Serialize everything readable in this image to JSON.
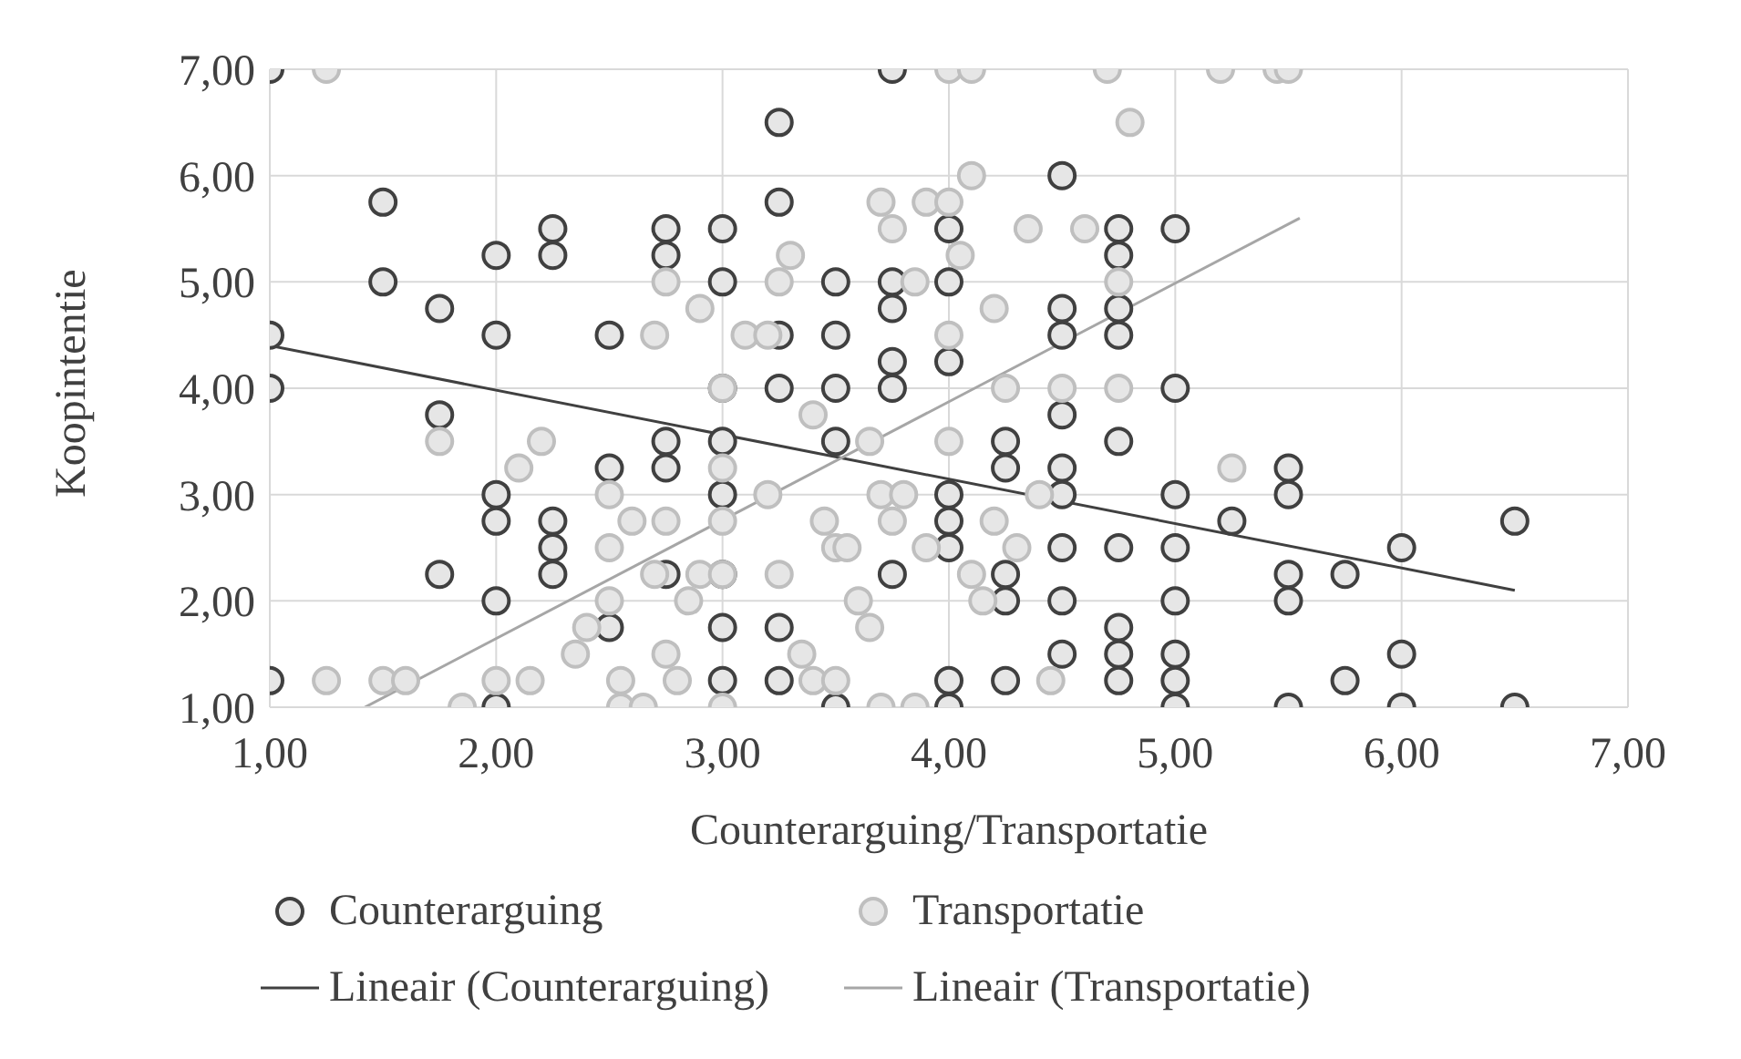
{
  "chart_data": {
    "type": "scatter",
    "xlabel": "Counterarguing/Transportatie",
    "ylabel": "Koopintentie",
    "xlim": [
      1,
      7
    ],
    "ylim": [
      1,
      7
    ],
    "xticks": [
      {
        "value": 1,
        "label": "1,00"
      },
      {
        "value": 2,
        "label": "2,00"
      },
      {
        "value": 3,
        "label": "3,00"
      },
      {
        "value": 4,
        "label": "4,00"
      },
      {
        "value": 5,
        "label": "5,00"
      },
      {
        "value": 6,
        "label": "6,00"
      },
      {
        "value": 7,
        "label": "7,00"
      }
    ],
    "yticks": [
      {
        "value": 1,
        "label": "1,00"
      },
      {
        "value": 2,
        "label": "2,00"
      },
      {
        "value": 3,
        "label": "3,00"
      },
      {
        "value": 4,
        "label": "4,00"
      },
      {
        "value": 5,
        "label": "5,00"
      },
      {
        "value": 6,
        "label": "6,00"
      },
      {
        "value": 7,
        "label": "7,00"
      }
    ],
    "grid": true,
    "legend": "bottom",
    "marker": "circle",
    "series": [
      {
        "name": "Counterarguing",
        "color": "#404040",
        "x": [
          1,
          1,
          1,
          1,
          1.5,
          1.5,
          1.75,
          1.75,
          1.75,
          2,
          2,
          2,
          2,
          2,
          2,
          2.25,
          2.25,
          2.25,
          2.25,
          2.25,
          2.5,
          2.5,
          2.5,
          2.75,
          2.75,
          2.75,
          2.75,
          2.75,
          3,
          3,
          3,
          3,
          3,
          3,
          3,
          3,
          3.25,
          3.25,
          3.25,
          3.25,
          3.25,
          3.25,
          3.5,
          3.5,
          3.5,
          3.5,
          3.5,
          3.75,
          3.75,
          3.75,
          3.75,
          3.75,
          3.75,
          4,
          4,
          4,
          4,
          4,
          4,
          4,
          4,
          4.25,
          4.25,
          4.25,
          4.25,
          4.25,
          4.5,
          4.5,
          4.5,
          4.5,
          4.5,
          4.5,
          4.5,
          4.5,
          4.5,
          4.75,
          4.75,
          4.75,
          4.75,
          4.75,
          4.75,
          4.75,
          4.75,
          4.75,
          5,
          5,
          5,
          5,
          5,
          5,
          5,
          5,
          5.25,
          5.5,
          5.5,
          5.5,
          5.5,
          5.5,
          5.75,
          5.75,
          6,
          6,
          6,
          6.5,
          6.5
        ],
        "values": [
          7,
          4.5,
          4,
          1.25,
          5.75,
          5,
          4.75,
          3.75,
          2.25,
          5.25,
          4.5,
          3,
          2.75,
          2,
          1,
          5.5,
          5.25,
          2.75,
          2.5,
          2.25,
          4.5,
          3.25,
          1.75,
          5.5,
          5.25,
          3.5,
          3.25,
          2.25,
          5.5,
          5,
          4,
          3.5,
          3,
          2.25,
          1.75,
          1.25,
          6.5,
          5.75,
          4.5,
          4,
          1.75,
          1.25,
          5,
          4.5,
          4,
          3.5,
          1,
          7,
          5,
          4.75,
          4.25,
          4,
          2.25,
          5.5,
          5,
          4.25,
          3,
          2.75,
          2.5,
          1.25,
          1,
          3.5,
          3.25,
          2.25,
          2,
          1.25,
          6,
          4.75,
          4.5,
          3.75,
          3.25,
          3,
          2.5,
          2,
          1.5,
          5.5,
          5.25,
          4.75,
          4.5,
          3.5,
          2.5,
          1.75,
          1.5,
          1.25,
          5.5,
          4,
          3,
          2.5,
          2,
          1.5,
          1.25,
          1,
          2.75,
          3.25,
          3,
          2.25,
          2,
          1,
          2.25,
          1.25,
          2.5,
          1.5,
          1,
          2.75,
          1
        ]
      },
      {
        "name": "Transportatie",
        "color": "#bfbfbf",
        "x": [
          1.25,
          1.25,
          1.5,
          1.6,
          1.75,
          1.85,
          2,
          2.1,
          2.15,
          2.2,
          2.35,
          2.4,
          2.5,
          2.5,
          2.5,
          2.55,
          2.55,
          2.6,
          2.65,
          2.7,
          2.7,
          2.75,
          2.75,
          2.75,
          2.8,
          2.85,
          2.9,
          2.9,
          3,
          3,
          3,
          3,
          3,
          3.1,
          3.2,
          3.2,
          3.25,
          3.25,
          3.3,
          3.35,
          3.4,
          3.4,
          3.45,
          3.5,
          3.5,
          3.55,
          3.6,
          3.65,
          3.65,
          3.7,
          3.7,
          3.7,
          3.75,
          3.75,
          3.8,
          3.85,
          3.85,
          3.9,
          3.9,
          4,
          4,
          4,
          4,
          4.05,
          4.1,
          4.1,
          4.1,
          4.15,
          4.2,
          4.2,
          4.25,
          4.3,
          4.35,
          4.4,
          4.45,
          4.5,
          4.6,
          4.7,
          4.75,
          4.75,
          4.8,
          5.2,
          5.25,
          5.45,
          5.5
        ],
        "values": [
          7,
          1.25,
          1.25,
          1.25,
          3.5,
          1,
          1.25,
          3.25,
          1.25,
          3.5,
          1.5,
          1.75,
          3,
          2.5,
          2,
          1.25,
          1,
          2.75,
          1,
          2.25,
          4.5,
          5,
          2.75,
          1.5,
          1.25,
          2,
          4.75,
          2.25,
          4,
          3.25,
          2.75,
          2.25,
          1,
          4.5,
          4.5,
          3,
          5,
          2.25,
          5.25,
          1.5,
          3.75,
          1.25,
          2.75,
          2.5,
          1.25,
          2.5,
          2,
          3.5,
          1.75,
          5.75,
          3,
          1,
          5.5,
          2.75,
          3,
          5,
          1,
          5.75,
          2.5,
          7,
          5.75,
          4.5,
          3.5,
          5.25,
          7,
          6,
          2.25,
          2,
          4.75,
          2.75,
          4,
          2.5,
          5.5,
          3,
          1.25,
          4,
          5.5,
          7,
          4,
          5,
          6.5,
          7,
          3.25,
          7,
          7
        ]
      },
      {
        "name": "Lineair (Counterarguing)",
        "type": "line",
        "marker": "none",
        "color": "#404040",
        "x": [
          1,
          6.5
        ],
        "values": [
          4.4,
          2.1
        ]
      },
      {
        "name": "Lineair (Transportatie)",
        "type": "line",
        "marker": "none",
        "color": "#a6a6a6",
        "x": [
          1.42,
          5.55
        ],
        "values": [
          1,
          5.6
        ]
      }
    ]
  }
}
